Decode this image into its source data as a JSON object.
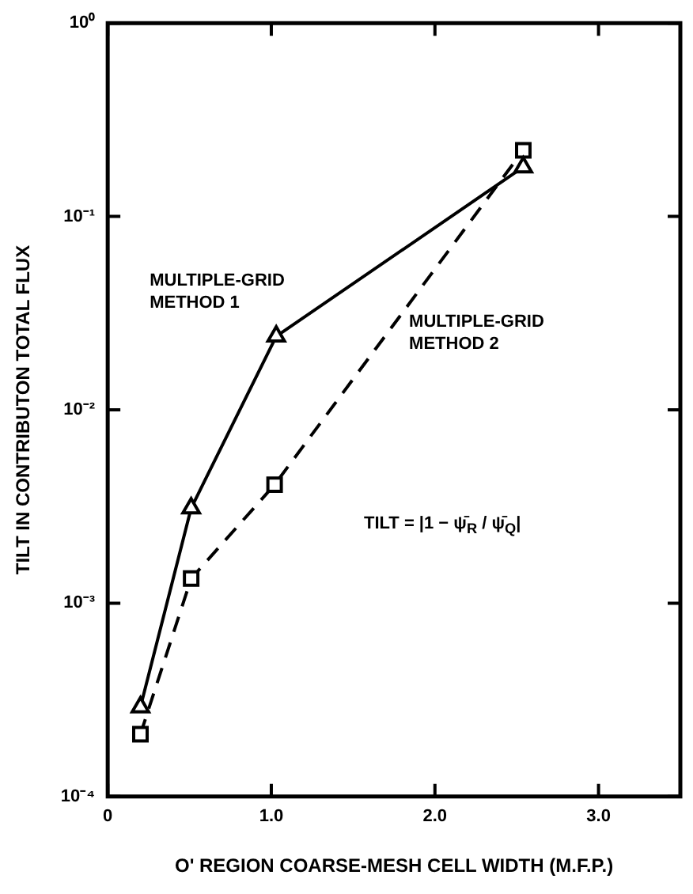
{
  "chart_data": {
    "type": "line",
    "xlabel": "O' REGION COARSE-MESH CELL WIDTH (M.F.P.)",
    "ylabel": "TILT IN CONTRIBUTON TOTAL FLUX",
    "log": "y",
    "grid": false,
    "legend": false,
    "xlim": [
      0,
      3.5
    ],
    "xticks": [
      0,
      {
        "value": 1,
        "label": "1.0"
      },
      {
        "value": 2,
        "label": "2.0"
      },
      {
        "value": 3,
        "label": "3.0"
      }
    ],
    "ylim": [
      0.0001,
      1
    ],
    "yticks": [
      {
        "value": 0.0001,
        "label": "10⁻⁴"
      },
      {
        "value": 0.001,
        "label": "10⁻³"
      },
      {
        "value": 0.01,
        "label": "10⁻²"
      },
      {
        "value": 0.1,
        "label": "10⁻¹"
      },
      {
        "value": 1,
        "label": "10⁰"
      }
    ],
    "series": [
      {
        "name": "MULTIPLE-GRID METHOD 1",
        "color": "#000000",
        "marker": "triangle",
        "line_style": "solid",
        "x": [
          0.2,
          0.51,
          1.03,
          2.54
        ],
        "values": [
          0.00029,
          0.0031,
          0.024,
          0.18
        ]
      },
      {
        "name": "MULTIPLE-GRID METHOD 2",
        "color": "#000000",
        "marker": "square",
        "line_style": "dashed",
        "x": [
          0.2,
          0.51,
          1.02,
          2.54
        ],
        "values": [
          0.00021,
          0.00134,
          0.0041,
          0.22
        ]
      }
    ],
    "annotations": [
      "TILT = |1 − ψ̄$_{R}$ / ψ̄$_{Q}$|"
    ]
  }
}
